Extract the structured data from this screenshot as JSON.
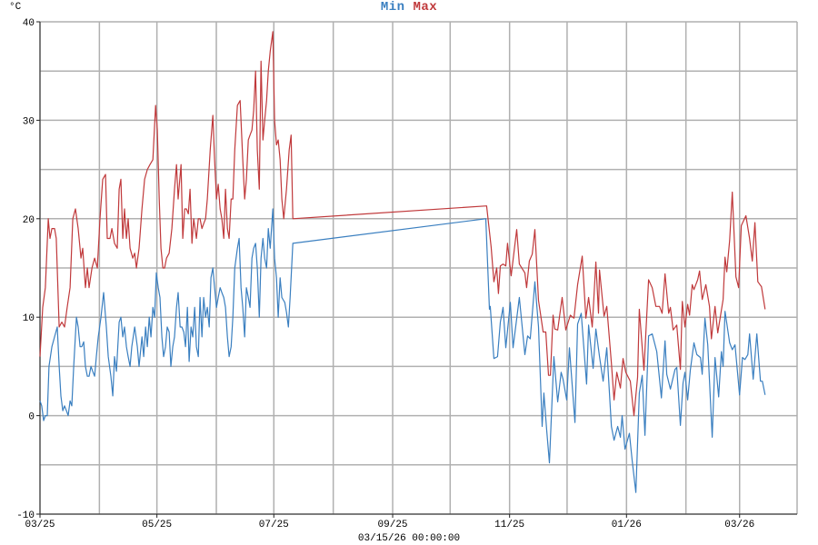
{
  "chart_data": {
    "type": "line",
    "title_parts": [
      "Min",
      "Max"
    ],
    "ylabel": "°C",
    "xlabel": "03/15/26 00:00:00",
    "x_unit": "days",
    "xlim": [
      0,
      395
    ],
    "ylim": [
      -10,
      40
    ],
    "grid": true,
    "y_ticks": [
      -10,
      0,
      10,
      20,
      30,
      40
    ],
    "y_minor_grid_step": 5,
    "x_ticks": [
      {
        "day": 0,
        "label": "03/25"
      },
      {
        "day": 61,
        "label": "05/25"
      },
      {
        "day": 122,
        "label": "07/25"
      },
      {
        "day": 184,
        "label": "09/25"
      },
      {
        "day": 245,
        "label": "11/25"
      },
      {
        "day": 306,
        "label": "01/26"
      },
      {
        "day": 365,
        "label": "03/26"
      }
    ],
    "x_month_grid": [
      0,
      31,
      61,
      92,
      122,
      153,
      184,
      214,
      245,
      275,
      306,
      337,
      365
    ],
    "series": [
      {
        "name": "Min",
        "color": "#3a7fc0",
        "x": [
          0,
          0.9,
          1.9,
          2.8,
          3.8,
          4.7,
          6.2,
          7.6,
          9.0,
          10.0,
          10.9,
          11.9,
          12.8,
          13.8,
          14.7,
          15.7,
          16.6,
          17.6,
          19.0,
          19.9,
          20.9,
          21.8,
          22.8,
          23.7,
          24.7,
          25.6,
          26.6,
          27.5,
          28.5,
          29.4,
          30.4,
          31.8,
          33.2,
          34.6,
          35.6,
          37.0,
          38.0,
          38.9,
          39.9,
          41.3,
          42.2,
          43.2,
          44.1,
          45.1,
          46.0,
          47.0,
          47.9,
          49.4,
          50.8,
          51.7,
          53.2,
          54.1,
          55.1,
          56.0,
          57.0,
          57.9,
          58.9,
          59.8,
          60.7,
          61.7,
          62.6,
          63.6,
          64.5,
          65.5,
          66.4,
          67.4,
          68.3,
          69.3,
          70.2,
          71.2,
          72.1,
          73.1,
          74.0,
          75.0,
          75.9,
          76.9,
          77.8,
          78.8,
          79.7,
          80.7,
          81.6,
          82.6,
          83.5,
          84.5,
          85.4,
          86.4,
          87.3,
          88.3,
          89.2,
          90.2,
          91.1,
          92.1,
          93.0,
          94.0,
          94.9,
          95.9,
          96.8,
          97.8,
          98.7,
          99.7,
          100.6,
          101.6,
          103.0,
          103.9,
          104.9,
          105.8,
          106.8,
          107.7,
          108.7,
          109.6,
          110.6,
          111.5,
          112.5,
          113.4,
          114.4,
          115.3,
          116.3,
          117.2,
          118.2,
          119.1,
          120.1,
          121.5,
          122.4,
          123.4,
          124.3,
          125.3,
          126.2,
          127.7,
          128.6,
          129.6,
          130.5,
          131.9,
          232.6,
          234.5,
          234.9,
          236.8,
          238.7,
          240.2,
          241.6,
          243.0,
          245.4,
          246.8,
          250.1,
          253.0,
          254.4,
          255.8,
          258.2,
          260.1,
          262.0,
          262.9,
          264.4,
          265.8,
          268.1,
          270.1,
          271.9,
          272.9,
          274.8,
          276.2,
          279.1,
          280.5,
          282.4,
          285.2,
          286.2,
          288.6,
          290.0,
          291.9,
          293.8,
          295.7,
          298.1,
          299.5,
          301.4,
          302.8,
          303.7,
          305.2,
          307.5,
          309.0,
          310.9,
          312.7,
          314.2,
          315.6,
          317.5,
          319.4,
          321.8,
          324.2,
          326.1,
          327.0,
          328.9,
          331.3,
          332.2,
          334.1,
          335.5,
          336.5,
          337.9,
          339.3,
          341.2,
          342.7,
          344.6,
          345.5,
          346.9,
          348.4,
          350.7,
          352.2,
          354.1,
          355.5,
          356.4,
          357.4,
          359.8,
          361.2,
          362.6,
          365.0,
          366.5,
          367.8,
          369.3,
          370.2,
          372.1,
          374.0,
          375.9,
          376.9,
          378.3
        ],
        "values": [
          1.5,
          1,
          -0.5,
          0,
          0,
          5,
          7,
          8,
          9,
          5,
          2,
          0.5,
          1,
          0.5,
          0,
          1.5,
          1,
          5,
          10,
          9,
          7,
          7,
          7.5,
          5,
          4,
          4,
          5,
          4.5,
          4,
          6,
          8,
          10,
          12.5,
          9,
          6,
          4,
          2,
          6,
          4.5,
          9.5,
          10,
          8,
          9,
          7,
          6,
          5,
          7,
          9,
          7,
          5,
          8,
          6,
          9,
          7,
          10,
          8,
          11,
          10,
          14.5,
          13,
          12,
          8,
          6,
          7,
          9,
          8.5,
          5,
          7,
          8,
          11,
          12.5,
          9,
          9,
          8.5,
          7,
          11,
          5.5,
          9,
          8,
          11,
          7,
          6,
          12,
          8,
          12,
          10,
          11,
          9,
          14,
          15,
          13,
          11,
          12,
          13,
          12.5,
          12,
          11,
          8,
          6,
          7,
          10,
          15,
          17,
          18,
          13,
          11,
          8,
          13,
          12,
          11,
          16,
          17,
          17.5,
          15,
          10,
          16,
          18,
          16,
          15,
          19,
          17,
          21,
          16,
          14,
          10,
          14,
          12,
          11.5,
          10.5,
          9,
          12,
          17.5,
          20,
          10.8,
          11.1,
          5.8,
          6,
          9.5,
          11,
          6.9,
          11.5,
          6.9,
          12,
          6.2,
          8.1,
          7.8,
          13.6,
          9,
          -1.1,
          2.3,
          -1.6,
          -4.8,
          6,
          1.4,
          4.4,
          3.7,
          1.6,
          6.9,
          -0.7,
          9.3,
          10.4,
          3.2,
          9.2,
          4.8,
          8.8,
          6,
          3.5,
          6.9,
          -1.1,
          -2.5,
          -1.1,
          -2.2,
          0,
          -3.4,
          -1.8,
          -4.6,
          -7.8,
          2.3,
          4.1,
          -2,
          8.1,
          8.3,
          6.5,
          1.8,
          7.6,
          4.2,
          2.7,
          4.7,
          4.9,
          -1,
          3.3,
          4.4,
          1.6,
          4.6,
          7.4,
          6.2,
          5.9,
          4.2,
          9.9,
          7.2,
          -2.2,
          5.9,
          1.9,
          6.5,
          5,
          10.6,
          7.4,
          6.7,
          7.2,
          2.1,
          5.9,
          5.7,
          6.2,
          8.3,
          3.7,
          8.3,
          3.5,
          3.5,
          2.1
        ]
      },
      {
        "name": "Max",
        "color": "#c0393b",
        "x": [
          0,
          1.4,
          2.8,
          4.3,
          5.2,
          6.2,
          7.6,
          8.5,
          10.0,
          11.4,
          12.8,
          14.2,
          15.7,
          17.1,
          18.5,
          19.9,
          21.4,
          22.3,
          23.7,
          24.7,
          25.6,
          27.1,
          28.5,
          29.9,
          31.3,
          32.7,
          34.2,
          35.1,
          36.5,
          37.5,
          38.9,
          40.3,
          41.3,
          42.2,
          43.2,
          44.1,
          45.1,
          46.0,
          47.0,
          48.4,
          49.4,
          50.3,
          51.7,
          53.2,
          54.6,
          56.0,
          57.4,
          58.9,
          60.3,
          61.2,
          62.2,
          63.1,
          64.1,
          65.0,
          66.0,
          67.4,
          68.8,
          70.2,
          71.2,
          72.1,
          73.6,
          74.5,
          75.5,
          76.4,
          77.4,
          78.3,
          79.3,
          80.2,
          81.6,
          82.6,
          83.5,
          84.5,
          85.4,
          86.4,
          87.3,
          88.8,
          90.2,
          91.1,
          92.1,
          93.0,
          94.0,
          94.9,
          95.9,
          96.8,
          97.8,
          98.7,
          99.7,
          100.6,
          101.6,
          103.0,
          104.4,
          105.8,
          106.8,
          107.7,
          108.7,
          109.6,
          110.6,
          111.5,
          112.5,
          113.4,
          114.4,
          115.3,
          116.3,
          117.2,
          118.2,
          119.1,
          120.1,
          121.5,
          122.4,
          123.4,
          124.3,
          125.3,
          126.2,
          127.2,
          128.6,
          130.0,
          131.0,
          131.9,
          233.0,
          235.4,
          236.8,
          238.3,
          239.2,
          240.2,
          241.6,
          243.0,
          243.9,
          245.8,
          248.7,
          250.1,
          253.0,
          253.9,
          255.3,
          256.8,
          258.2,
          260.1,
          262.5,
          263.9,
          265.3,
          266.3,
          267.7,
          268.6,
          270.1,
          272.4,
          274.3,
          276.7,
          278.6,
          280.5,
          282.9,
          284.8,
          286.2,
          288.1,
          290.0,
          291.4,
          291.9,
          294.3,
          295.7,
          298.1,
          299.5,
          300.9,
          302.8,
          303.3,
          304.2,
          305.6,
          308.0,
          309.9,
          311.8,
          312.7,
          315.1,
          317.5,
          319.4,
          321.3,
          323.2,
          324.6,
          326.1,
          328.0,
          328.9,
          330.3,
          332.2,
          334.1,
          335.1,
          336.5,
          337.9,
          338.9,
          340.3,
          341.2,
          343.1,
          344.1,
          345.5,
          347.4,
          349.3,
          350.3,
          352.2,
          353.6,
          356.4,
          357.4,
          358.3,
          359.8,
          361.2,
          363.1,
          364.5,
          365.9,
          368.3,
          370.2,
          371.6,
          373.0,
          374.5,
          376.4,
          378.3
        ],
        "values": [
          6,
          11,
          13,
          20,
          18,
          19,
          19,
          18,
          9,
          9.5,
          9,
          11,
          13,
          20,
          21,
          19,
          16,
          17,
          13,
          15,
          13,
          15,
          16,
          15,
          20,
          24,
          24.5,
          18,
          18,
          19,
          17.5,
          17,
          23,
          24,
          18,
          21,
          18,
          20,
          17,
          16,
          16.5,
          15,
          17,
          21,
          24,
          25,
          25.5,
          26,
          31.5,
          29,
          22,
          17,
          15,
          15,
          16,
          16.5,
          19,
          23,
          25.5,
          22,
          25.5,
          18,
          21,
          21,
          20.5,
          23,
          17.5,
          20,
          18,
          20,
          20,
          19,
          19.5,
          20,
          22,
          27,
          30.5,
          26,
          22,
          23.5,
          21,
          20,
          18,
          23,
          19,
          18,
          22,
          22,
          27,
          31.5,
          32,
          26,
          22,
          24,
          28,
          28.5,
          29,
          31,
          35,
          27,
          23,
          36,
          28,
          30,
          32,
          35,
          37,
          39,
          30,
          27.5,
          28,
          26,
          22,
          20,
          23,
          27,
          28.5,
          20,
          21.3,
          17.1,
          13.6,
          15,
          12.4,
          15.2,
          15.4,
          15.2,
          17.5,
          14.2,
          18.9,
          15.4,
          14.5,
          13,
          15.7,
          16.4,
          18.9,
          11.7,
          8.5,
          8.5,
          4.1,
          4.1,
          10.2,
          8.8,
          8.7,
          12,
          8.7,
          10.2,
          9.9,
          13.3,
          16.2,
          9.9,
          12,
          9,
          15.6,
          10.4,
          14.8,
          10.1,
          11.1,
          5.3,
          1.6,
          4.4,
          2.8,
          3.9,
          5.8,
          4.4,
          3.5,
          0,
          3.9,
          10.8,
          4.6,
          13.8,
          13,
          11.1,
          11.1,
          10.4,
          14.4,
          10.4,
          11,
          8.7,
          9.2,
          4.7,
          11.6,
          9,
          11.3,
          10.2,
          13.3,
          12.8,
          13.8,
          14.7,
          11.8,
          13.3,
          11.1,
          7.8,
          11.1,
          8.4,
          11.8,
          16.1,
          14.6,
          17.8,
          22.7,
          14.1,
          13,
          19.3,
          20.3,
          18,
          15.7,
          19.6,
          13.6,
          13.1,
          10.8
        ]
      }
    ]
  }
}
